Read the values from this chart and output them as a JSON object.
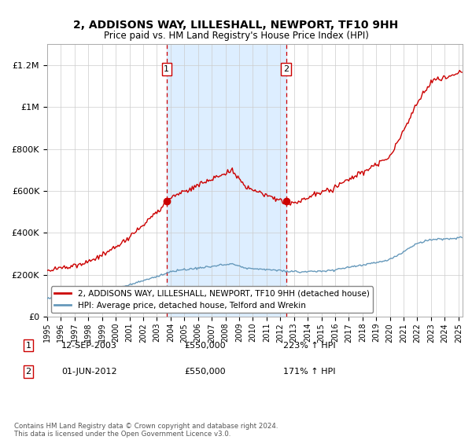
{
  "title": "2, ADDISONS WAY, LILLESHALL, NEWPORT, TF10 9HH",
  "subtitle": "Price paid vs. HM Land Registry's House Price Index (HPI)",
  "sale1_date": "12-SEP-2003",
  "sale1_price": 550000,
  "sale1_pct": "223%",
  "sale2_date": "01-JUN-2012",
  "sale2_price": 550000,
  "sale2_pct": "171%",
  "legend_line1": "2, ADDISONS WAY, LILLESHALL, NEWPORT, TF10 9HH (detached house)",
  "legend_line2": "HPI: Average price, detached house, Telford and Wrekin",
  "footnote": "Contains HM Land Registry data © Crown copyright and database right 2024.\nThis data is licensed under the Open Government Licence v3.0.",
  "red_color": "#cc0000",
  "blue_color": "#6699bb",
  "bg_shade_color": "#ddeeff",
  "ylim_max": 1300000,
  "ylabel_ticks": [
    0,
    200000,
    400000,
    600000,
    800000,
    1000000,
    1200000
  ],
  "ylabel_labels": [
    "£0",
    "£200K",
    "£400K",
    "£600K",
    "£800K",
    "£1M",
    "£1.2M"
  ],
  "sale1_x": 2003.71,
  "sale2_x": 2012.42,
  "xmin": 1995.0,
  "xmax": 2025.3
}
